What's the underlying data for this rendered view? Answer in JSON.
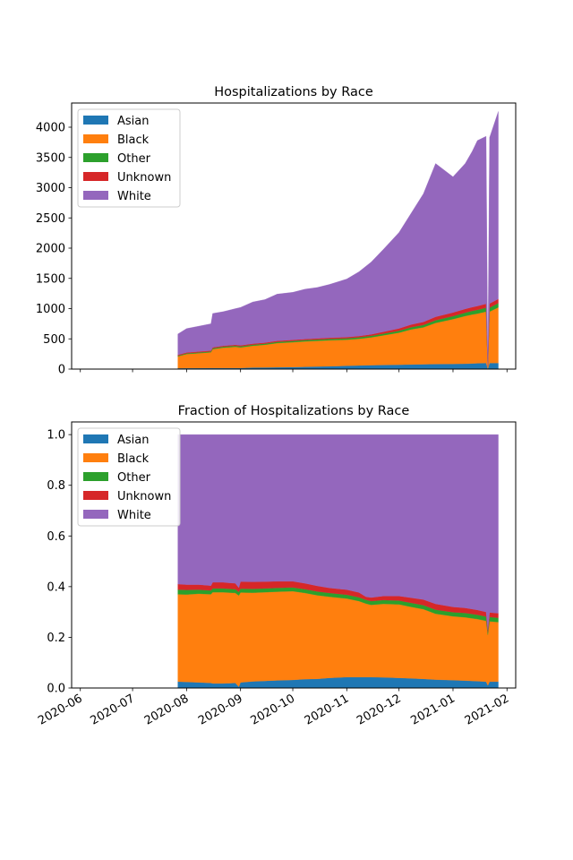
{
  "chart_data": [
    {
      "type": "area",
      "stacked": true,
      "title": "Hospitalizations by Race",
      "xlabel": "",
      "ylabel": "",
      "x_range": [
        "2020-05-27",
        "2021-02-06"
      ],
      "ylim": [
        0,
        4400
      ],
      "yticks": [
        0,
        500,
        1000,
        1500,
        2000,
        2500,
        3000,
        3500,
        4000
      ],
      "grid": false,
      "legend_position": "top-left",
      "x": [
        "2020-07-27",
        "2020-08-01",
        "2020-08-08",
        "2020-08-15",
        "2020-08-16",
        "2020-08-22",
        "2020-08-29",
        "2020-09-01",
        "2020-09-08",
        "2020-09-15",
        "2020-09-22",
        "2020-10-01",
        "2020-10-08",
        "2020-10-15",
        "2020-10-22",
        "2020-11-01",
        "2020-11-08",
        "2020-11-15",
        "2020-11-22",
        "2020-12-01",
        "2020-12-08",
        "2020-12-15",
        "2020-12-22",
        "2021-01-01",
        "2021-01-08",
        "2021-01-12",
        "2021-01-15",
        "2021-01-20",
        "2021-01-21",
        "2021-01-22",
        "2021-01-27"
      ],
      "series": [
        {
          "name": "Asian",
          "color": "#1f77b4",
          "values": [
            14,
            16,
            17,
            18,
            18,
            18,
            18,
            18,
            25,
            27,
            30,
            34,
            38,
            42,
            46,
            55,
            60,
            64,
            68,
            72,
            76,
            80,
            83,
            86,
            88,
            92,
            97,
            100,
            5,
            100,
            100
          ]
        },
        {
          "name": "Black",
          "color": "#ff7f0e",
          "values": [
            195,
            232,
            245,
            260,
            310,
            335,
            350,
            340,
            360,
            375,
            400,
            410,
            420,
            425,
            430,
            430,
            440,
            460,
            490,
            530,
            580,
            610,
            680,
            740,
            790,
            810,
            820,
            850,
            35,
            850,
            920
          ]
        },
        {
          "name": "Other",
          "color": "#2ca02c",
          "values": [
            12,
            13,
            14,
            14,
            16,
            17,
            18,
            18,
            18,
            19,
            20,
            21,
            21,
            22,
            23,
            24,
            25,
            26,
            28,
            32,
            36,
            40,
            45,
            50,
            55,
            60,
            62,
            64,
            3,
            66,
            70
          ]
        },
        {
          "name": "Unknown",
          "color": "#d62728",
          "values": [
            14,
            14,
            14,
            14,
            16,
            16,
            16,
            17,
            17,
            17,
            17,
            18,
            18,
            19,
            19,
            20,
            22,
            25,
            30,
            38,
            45,
            50,
            56,
            60,
            62,
            62,
            64,
            66,
            3,
            68,
            70
          ]
        },
        {
          "name": "White",
          "color": "#9467bd",
          "values": [
            345,
            395,
            420,
            444,
            560,
            564,
            598,
            627,
            690,
            712,
            773,
            787,
            825,
            842,
            882,
            961,
            1063,
            1195,
            1364,
            1588,
            1843,
            2120,
            2536,
            2244,
            2405,
            2576,
            2737,
            2770,
            30,
            2746,
            3100
          ]
        }
      ]
    },
    {
      "type": "area",
      "stacked": true,
      "title": "Fraction of Hospitalizations by Race",
      "xlabel": "",
      "ylabel": "",
      "x_range": [
        "2020-05-27",
        "2021-02-06"
      ],
      "ylim": [
        0,
        1.05
      ],
      "yticks": [
        0.0,
        0.2,
        0.4,
        0.6,
        0.8,
        1.0
      ],
      "ytick_labels": [
        "0.0",
        "0.2",
        "0.4",
        "0.6",
        "0.8",
        "1.0"
      ],
      "xticks": [
        "2020-06-01",
        "2020-07-01",
        "2020-08-01",
        "2020-09-01",
        "2020-10-01",
        "2020-11-01",
        "2020-12-01",
        "2021-01-01",
        "2021-02-01"
      ],
      "xtick_labels": [
        "2020-06",
        "2020-07",
        "2020-08",
        "2020-09",
        "2020-10",
        "2020-11",
        "2020-12",
        "2021-01",
        "2021-02"
      ],
      "grid": false,
      "legend_position": "top-left",
      "x": [
        "2020-07-27",
        "2020-08-01",
        "2020-08-08",
        "2020-08-15",
        "2020-08-16",
        "2020-08-22",
        "2020-08-29",
        "2020-08-31",
        "2020-09-01",
        "2020-09-08",
        "2020-09-15",
        "2020-09-22",
        "2020-10-01",
        "2020-10-08",
        "2020-10-15",
        "2020-10-22",
        "2020-11-01",
        "2020-11-08",
        "2020-11-12",
        "2020-11-15",
        "2020-11-22",
        "2020-12-01",
        "2020-12-08",
        "2020-12-15",
        "2020-12-22",
        "2021-01-01",
        "2021-01-08",
        "2021-01-15",
        "2021-01-20",
        "2021-01-21",
        "2021-01-22",
        "2021-01-27"
      ],
      "series": [
        {
          "name": "Asian",
          "color": "#1f77b4",
          "values": [
            0.025,
            0.024,
            0.022,
            0.02,
            0.018,
            0.018,
            0.02,
            0.005,
            0.022,
            0.026,
            0.028,
            0.03,
            0.032,
            0.035,
            0.036,
            0.04,
            0.043,
            0.043,
            0.043,
            0.043,
            0.042,
            0.04,
            0.038,
            0.036,
            0.033,
            0.031,
            0.029,
            0.027,
            0.025,
            0.01,
            0.025,
            0.025
          ]
        },
        {
          "name": "Black",
          "color": "#ff7f0e",
          "values": [
            0.345,
            0.345,
            0.35,
            0.35,
            0.36,
            0.36,
            0.355,
            0.36,
            0.355,
            0.35,
            0.35,
            0.35,
            0.35,
            0.34,
            0.33,
            0.32,
            0.31,
            0.3,
            0.29,
            0.285,
            0.29,
            0.29,
            0.282,
            0.275,
            0.26,
            0.252,
            0.25,
            0.245,
            0.24,
            0.2,
            0.238,
            0.235
          ]
        },
        {
          "name": "Other",
          "color": "#2ca02c",
          "values": [
            0.018,
            0.018,
            0.016,
            0.015,
            0.015,
            0.015,
            0.015,
            0.014,
            0.015,
            0.015,
            0.015,
            0.015,
            0.015,
            0.015,
            0.015,
            0.015,
            0.015,
            0.015,
            0.015,
            0.015,
            0.015,
            0.015,
            0.016,
            0.016,
            0.016,
            0.016,
            0.017,
            0.017,
            0.017,
            0.01,
            0.017,
            0.017
          ]
        },
        {
          "name": "Unknown",
          "color": "#d62728",
          "values": [
            0.022,
            0.021,
            0.02,
            0.019,
            0.024,
            0.024,
            0.023,
            0.017,
            0.028,
            0.028,
            0.027,
            0.026,
            0.024,
            0.023,
            0.022,
            0.02,
            0.02,
            0.019,
            0.012,
            0.014,
            0.016,
            0.018,
            0.02,
            0.022,
            0.023,
            0.021,
            0.02,
            0.019,
            0.018,
            0.01,
            0.018,
            0.018
          ]
        },
        {
          "name": "White",
          "color": "#9467bd",
          "values": [
            0.59,
            0.592,
            0.592,
            0.596,
            0.583,
            0.583,
            0.587,
            0.604,
            0.58,
            0.581,
            0.58,
            0.579,
            0.579,
            0.587,
            0.597,
            0.605,
            0.612,
            0.623,
            0.64,
            0.643,
            0.637,
            0.637,
            0.644,
            0.651,
            0.668,
            0.68,
            0.684,
            0.692,
            0.7,
            0.77,
            0.702,
            0.705
          ]
        }
      ]
    }
  ]
}
